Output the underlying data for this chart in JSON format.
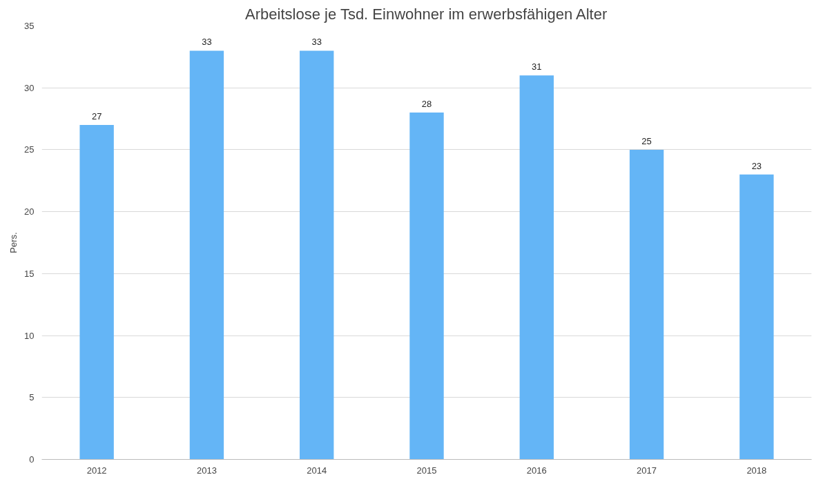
{
  "chart_data": {
    "type": "bar",
    "title": "Arbeitslose je Tsd. Einwohner im erwerbsfähigen Alter",
    "ylabel": "Pers.",
    "categories": [
      "2012",
      "2013",
      "2014",
      "2015",
      "2016",
      "2017",
      "2018"
    ],
    "values": [
      27,
      33,
      33,
      28,
      31,
      25,
      23
    ],
    "color": "#64b5f6",
    "ylim": [
      0,
      35
    ],
    "yticks": [
      0,
      5,
      10,
      15,
      20,
      25,
      30,
      35
    ],
    "grid": "y",
    "data_labels": true
  }
}
